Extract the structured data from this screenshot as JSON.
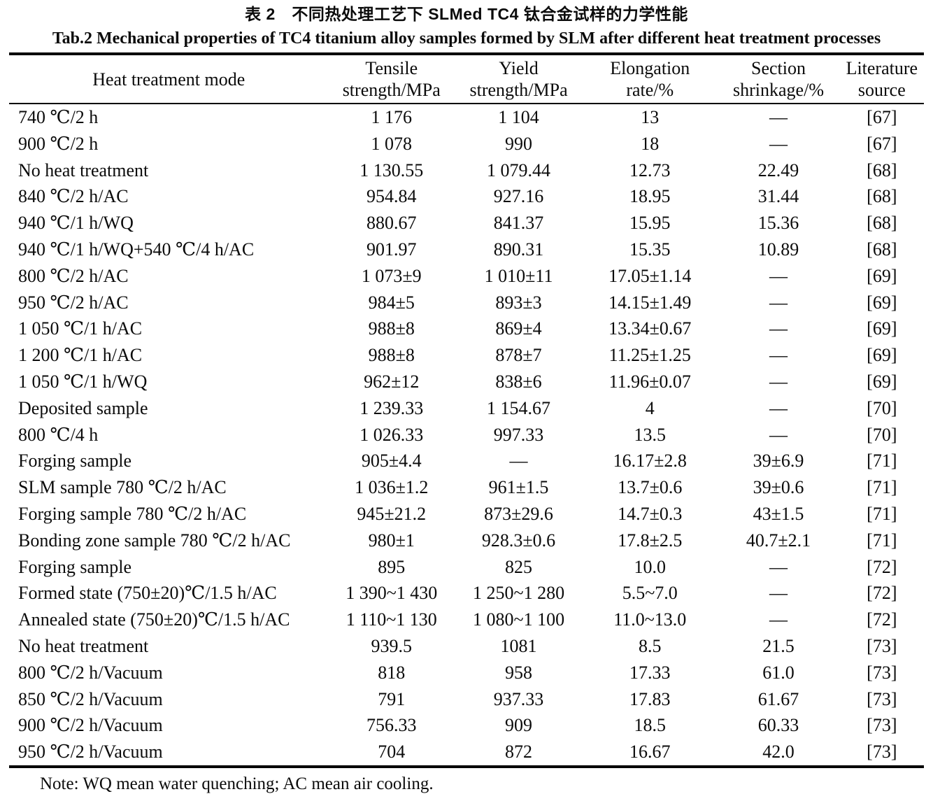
{
  "titles": {
    "zh": "表 2　不同热处理工艺下 SLMed TC4 钛合金试样的力学性能",
    "en": "Tab.2 Mechanical properties of TC4 titanium alloy samples formed by SLM after different heat treatment processes"
  },
  "table": {
    "column_keys": [
      "heat-treatment-mode",
      "tensile-strength",
      "yield-strength",
      "elongation-rate",
      "section-shrinkage",
      "literature-source"
    ],
    "header": [
      {
        "l1": "Heat treatment mode",
        "l2": ""
      },
      {
        "l1": "Tensile",
        "l2": "strength/MPa"
      },
      {
        "l1": "Yield",
        "l2": "strength/MPa"
      },
      {
        "l1": "Elongation",
        "l2": "rate/%"
      },
      {
        "l1": "Section",
        "l2": "shrinkage/%"
      },
      {
        "l1": "Literature",
        "l2": "source"
      }
    ],
    "rows": [
      [
        "740 ℃/2 h",
        "1 176",
        "1 104",
        "13",
        "—",
        "[67]"
      ],
      [
        "900 ℃/2 h",
        "1 078",
        "990",
        "18",
        "—",
        "[67]"
      ],
      [
        "No heat treatment",
        "1 130.55",
        "1 079.44",
        "12.73",
        "22.49",
        "[68]"
      ],
      [
        "840 ℃/2 h/AC",
        "954.84",
        "927.16",
        "18.95",
        "31.44",
        "[68]"
      ],
      [
        "940 ℃/1 h/WQ",
        "880.67",
        "841.37",
        "15.95",
        "15.36",
        "[68]"
      ],
      [
        "940 ℃/1 h/WQ+540 ℃/4 h/AC",
        "901.97",
        "890.31",
        "15.35",
        "10.89",
        "[68]"
      ],
      [
        "800 ℃/2 h/AC",
        "1 073±9",
        "1 010±11",
        "17.05±1.14",
        "—",
        "[69]"
      ],
      [
        "950 ℃/2 h/AC",
        "984±5",
        "893±3",
        "14.15±1.49",
        "—",
        "[69]"
      ],
      [
        "1 050 ℃/1 h/AC",
        "988±8",
        "869±4",
        "13.34±0.67",
        "—",
        "[69]"
      ],
      [
        "1 200 ℃/1 h/AC",
        "988±8",
        "878±7",
        "11.25±1.25",
        "—",
        "[69]"
      ],
      [
        "1 050 ℃/1 h/WQ",
        "962±12",
        "838±6",
        "11.96±0.07",
        "—",
        "[69]"
      ],
      [
        "Deposited sample",
        "1 239.33",
        "1 154.67",
        "4",
        "—",
        "[70]"
      ],
      [
        "800 ℃/4 h",
        "1 026.33",
        "997.33",
        "13.5",
        "—",
        "[70]"
      ],
      [
        "Forging sample",
        "905±4.4",
        "—",
        "16.17±2.8",
        "39±6.9",
        "[71]"
      ],
      [
        "SLM sample 780 ℃/2 h/AC",
        "1 036±1.2",
        "961±1.5",
        "13.7±0.6",
        "39±0.6",
        "[71]"
      ],
      [
        "Forging sample 780 ℃/2 h/AC",
        "945±21.2",
        "873±29.6",
        "14.7±0.3",
        "43±1.5",
        "[71]"
      ],
      [
        "Bonding zone sample 780 ℃/2 h/AC",
        "980±1",
        "928.3±0.6",
        "17.8±2.5",
        "40.7±2.1",
        "[71]"
      ],
      [
        "Forging sample",
        "895",
        "825",
        "10.0",
        "—",
        "[72]"
      ],
      [
        "Formed state (750±20)℃/1.5 h/AC",
        "1 390~1 430",
        "1 250~1 280",
        "5.5~7.0",
        "—",
        "[72]"
      ],
      [
        "Annealed state (750±20)℃/1.5 h/AC",
        "1 110~1 130",
        "1 080~1 100",
        "11.0~13.0",
        "—",
        "[72]"
      ],
      [
        "No heat treatment",
        "939.5",
        "1081",
        "8.5",
        "21.5",
        "[73]"
      ],
      [
        "800 ℃/2 h/Vacuum",
        "818",
        "958",
        "17.33",
        "61.0",
        "[73]"
      ],
      [
        "850 ℃/2 h/Vacuum",
        "791",
        "937.33",
        "17.83",
        "61.67",
        "[73]"
      ],
      [
        "900 ℃/2 h/Vacuum",
        "756.33",
        "909",
        "18.5",
        "60.33",
        "[73]"
      ],
      [
        "950 ℃/2 h/Vacuum",
        "704",
        "872",
        "16.67",
        "42.0",
        "[73]"
      ]
    ]
  },
  "note": "Note: WQ mean water quenching; AC mean air cooling."
}
